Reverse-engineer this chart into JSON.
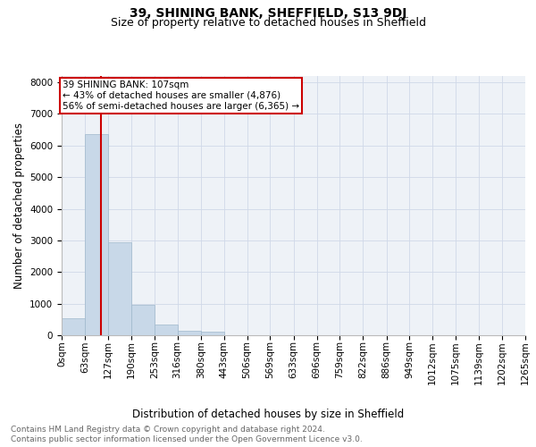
{
  "title": "39, SHINING BANK, SHEFFIELD, S13 9DJ",
  "subtitle": "Size of property relative to detached houses in Sheffield",
  "xlabel": "Distribution of detached houses by size in Sheffield",
  "ylabel": "Number of detached properties",
  "bin_edges": [
    0,
    63,
    127,
    190,
    253,
    316,
    380,
    443,
    506,
    569,
    633,
    696,
    759,
    822,
    886,
    949,
    1012,
    1075,
    1139,
    1202,
    1265
  ],
  "bar_heights": [
    550,
    6350,
    2950,
    950,
    350,
    150,
    100,
    0,
    0,
    0,
    0,
    0,
    0,
    0,
    0,
    0,
    0,
    0,
    0,
    0
  ],
  "bar_color": "#c8d8e8",
  "bar_edge_color": "#a0b8cc",
  "property_size": 107,
  "vline_color": "#cc0000",
  "annotation_line1": "39 SHINING BANK: 107sqm",
  "annotation_line2": "← 43% of detached houses are smaller (4,876)",
  "annotation_line3": "56% of semi-detached houses are larger (6,365) →",
  "annotation_box_color": "#cc0000",
  "annotation_bg": "#ffffff",
  "ylim": [
    0,
    8200
  ],
  "yticks": [
    0,
    1000,
    2000,
    3000,
    4000,
    5000,
    6000,
    7000,
    8000
  ],
  "grid_color": "#d0d8e8",
  "bg_color": "#eef2f7",
  "footer_line1": "Contains HM Land Registry data © Crown copyright and database right 2024.",
  "footer_line2": "Contains public sector information licensed under the Open Government Licence v3.0.",
  "title_fontsize": 10,
  "subtitle_fontsize": 9,
  "axis_label_fontsize": 8.5,
  "tick_fontsize": 7.5,
  "annotation_fontsize": 7.5,
  "footer_fontsize": 6.5
}
